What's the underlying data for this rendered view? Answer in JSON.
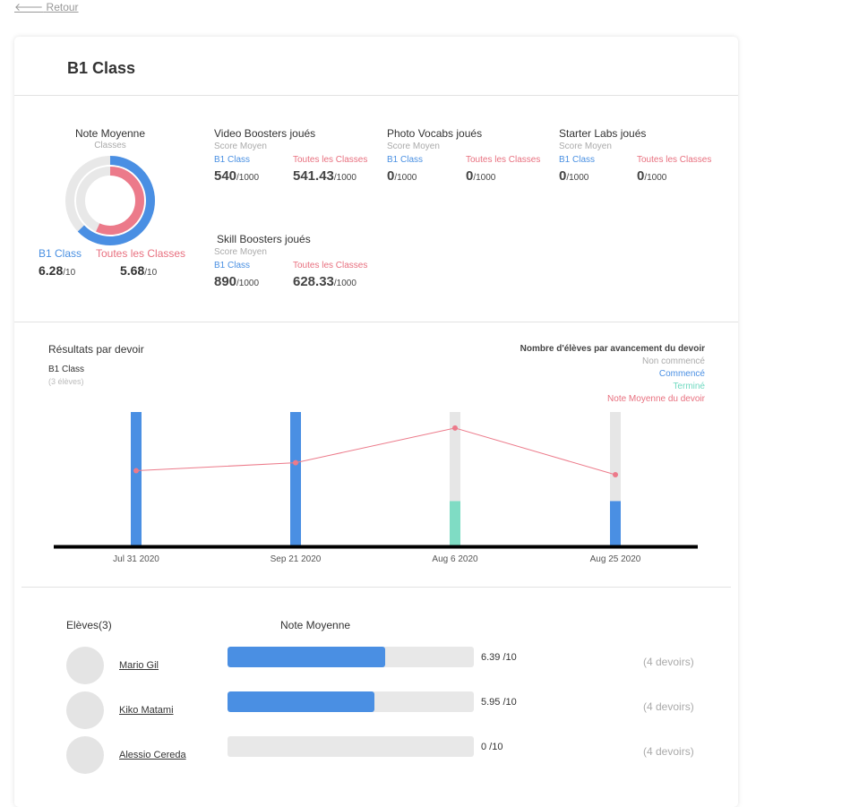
{
  "back_label": "Retour",
  "title": "B1 Class",
  "note_moyenne": {
    "title": "Note Moyenne",
    "subtitle": "Classes",
    "class_label": "B1 Class",
    "all_label": "Toutes les Classes",
    "class_value": "6.28",
    "all_value": "5.68",
    "denominator": "/10",
    "class_fraction": 0.628,
    "all_fraction": 0.568,
    "colors": {
      "class": "#4a8fe3",
      "all": "#ec7a8a",
      "track": "#e8e8e8"
    }
  },
  "stats": [
    {
      "title": "Video Boosters joués",
      "subtitle": "Score Moyen",
      "class_label": "B1 Class",
      "all_label": "Toutes les Classes",
      "class_value": "540",
      "all_value": "541.43",
      "denominator": "/1000"
    },
    {
      "title": "Photo Vocabs joués",
      "subtitle": "Score Moyen",
      "class_label": "B1 Class",
      "all_label": "Toutes les Classes",
      "class_value": "0",
      "all_value": "0",
      "denominator": "/1000"
    },
    {
      "title": "Starter Labs joués",
      "subtitle": "Score Moyen",
      "class_label": "B1 Class",
      "all_label": "Toutes les Classes",
      "class_value": "0",
      "all_value": "0",
      "denominator": "/1000"
    },
    {
      "title": "Skill Boosters joués",
      "subtitle": "Score Moyen",
      "class_label": "B1 Class",
      "all_label": "Toutes les Classes",
      "class_value": "890",
      "all_value": "628.33",
      "denominator": "/1000"
    }
  ],
  "results": {
    "title": "Résultats par devoir",
    "class_name": "B1 Class",
    "students_count": "(3 élèves)",
    "legend": {
      "title": "Nombre d'élèves par avancement du devoir",
      "not_started": "Non commencé",
      "started": "Commencé",
      "finished": "Terminé",
      "avg": "Note Moyenne du devoir"
    }
  },
  "chart_data": {
    "type": "bar",
    "stacked": true,
    "categories": [
      "Jul 31 2020",
      "Sep 21 2020",
      "Aug 6 2020",
      "Aug 25 2020"
    ],
    "ylim": [
      0,
      3
    ],
    "series": [
      {
        "name": "Commencé",
        "values": [
          3,
          3,
          0,
          1
        ],
        "color": "#4a8fe3"
      },
      {
        "name": "Terminé",
        "values": [
          0,
          0,
          1,
          0
        ],
        "color": "#7fdcc4"
      },
      {
        "name": "Non commencé",
        "values": [
          0,
          0,
          2,
          2
        ],
        "color": "#e6e6e6"
      }
    ],
    "line": {
      "name": "Note Moyenne du devoir",
      "values": [
        5.6,
        6.2,
        8.8,
        5.3
      ],
      "ylim": [
        0,
        10
      ],
      "color": "#ec7a8a"
    },
    "grid": false
  },
  "students": {
    "header": "Elèves(3)",
    "avg_header": "Note Moyenne",
    "list": [
      {
        "name": "Mario Gil",
        "score": "6.39 /10",
        "fraction": 0.639,
        "devoirs": "(4 devoirs)"
      },
      {
        "name": "Kiko Matami",
        "score": "5.95 /10",
        "fraction": 0.595,
        "devoirs": "(4 devoirs)"
      },
      {
        "name": "Alessio Cereda",
        "score": "0 /10",
        "fraction": 0,
        "devoirs": "(4 devoirs)"
      }
    ]
  }
}
